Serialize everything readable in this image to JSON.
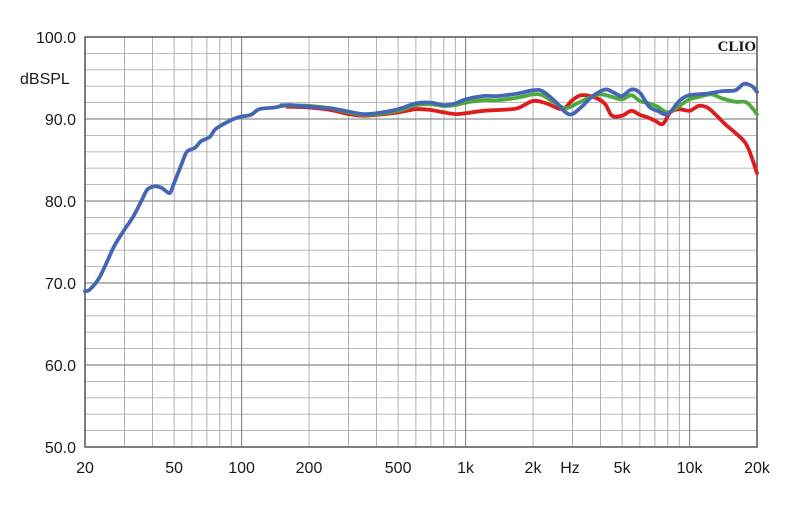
{
  "chart_data": {
    "type": "line",
    "title": "",
    "xlabel": "Hz",
    "ylabel": "dBSPL",
    "brand": "CLIO",
    "x_scale": "log",
    "xlim": [
      20,
      20000
    ],
    "ylim": [
      50,
      100
    ],
    "grid": true,
    "x_tick_labels": [
      {
        "value": 20,
        "label": "20"
      },
      {
        "value": 50,
        "label": "50"
      },
      {
        "value": 100,
        "label": "100"
      },
      {
        "value": 200,
        "label": "200"
      },
      {
        "value": 500,
        "label": "500"
      },
      {
        "value": 1000,
        "label": "1k"
      },
      {
        "value": 2000,
        "label": "2k"
      },
      {
        "value": 5000,
        "label": "5k"
      },
      {
        "value": 10000,
        "label": "10k"
      },
      {
        "value": 20000,
        "label": "20k"
      }
    ],
    "y_tick_labels": [
      {
        "value": 100,
        "label": "100.0"
      },
      {
        "value": 90,
        "label": "90.0"
      },
      {
        "value": 80,
        "label": "80.0"
      },
      {
        "value": 70,
        "label": "70.0"
      },
      {
        "value": 60,
        "label": "60.0"
      },
      {
        "value": 50,
        "label": "50.0"
      }
    ],
    "series": [
      {
        "color": "#dd1d1d",
        "points": [
          [
            160,
            91.5
          ],
          [
            200,
            91.4
          ],
          [
            250,
            91.1
          ],
          [
            300,
            90.6
          ],
          [
            350,
            90.4
          ],
          [
            400,
            90.5
          ],
          [
            500,
            90.8
          ],
          [
            600,
            91.2
          ],
          [
            700,
            91.1
          ],
          [
            800,
            90.8
          ],
          [
            900,
            90.6
          ],
          [
            1000,
            90.7
          ],
          [
            1200,
            91.0
          ],
          [
            1400,
            91.1
          ],
          [
            1700,
            91.3
          ],
          [
            2000,
            92.2
          ],
          [
            2300,
            91.9
          ],
          [
            2700,
            91.2
          ],
          [
            3000,
            92.3
          ],
          [
            3300,
            92.9
          ],
          [
            3800,
            92.6
          ],
          [
            4200,
            91.8
          ],
          [
            4500,
            90.4
          ],
          [
            5000,
            90.4
          ],
          [
            5500,
            91.0
          ],
          [
            6000,
            90.5
          ],
          [
            6500,
            90.2
          ],
          [
            7000,
            89.8
          ],
          [
            7600,
            89.4
          ],
          [
            8200,
            90.8
          ],
          [
            9000,
            91.2
          ],
          [
            10000,
            91.0
          ],
          [
            11000,
            91.6
          ],
          [
            12000,
            91.4
          ],
          [
            13000,
            90.6
          ],
          [
            14500,
            89.3
          ],
          [
            16000,
            88.3
          ],
          [
            18000,
            86.8
          ],
          [
            20000,
            83.4
          ]
        ]
      },
      {
        "color": "#4ca93a",
        "points": [
          [
            150,
            91.7
          ],
          [
            200,
            91.6
          ],
          [
            250,
            91.3
          ],
          [
            300,
            90.8
          ],
          [
            350,
            90.5
          ],
          [
            400,
            90.6
          ],
          [
            500,
            91.0
          ],
          [
            600,
            91.7
          ],
          [
            700,
            91.8
          ],
          [
            800,
            91.6
          ],
          [
            900,
            91.7
          ],
          [
            1000,
            92.0
          ],
          [
            1200,
            92.3
          ],
          [
            1400,
            92.3
          ],
          [
            1700,
            92.6
          ],
          [
            2000,
            93.0
          ],
          [
            2200,
            92.9
          ],
          [
            2500,
            92.0
          ],
          [
            2800,
            91.3
          ],
          [
            3200,
            92.0
          ],
          [
            3500,
            92.5
          ],
          [
            4000,
            93.0
          ],
          [
            4500,
            92.7
          ],
          [
            5000,
            92.4
          ],
          [
            5500,
            92.9
          ],
          [
            6000,
            92.2
          ],
          [
            6600,
            91.9
          ],
          [
            7200,
            91.5
          ],
          [
            8000,
            90.8
          ],
          [
            9000,
            91.6
          ],
          [
            10000,
            92.4
          ],
          [
            11000,
            92.7
          ],
          [
            12500,
            93.0
          ],
          [
            14000,
            92.5
          ],
          [
            16000,
            92.1
          ],
          [
            18000,
            92.0
          ],
          [
            20000,
            90.6
          ]
        ]
      },
      {
        "color": "#4566b5",
        "points": [
          [
            20,
            69.0
          ],
          [
            21,
            69.2
          ],
          [
            23,
            70.5
          ],
          [
            25,
            72.5
          ],
          [
            27,
            74.5
          ],
          [
            30,
            76.5
          ],
          [
            33,
            78.2
          ],
          [
            36,
            80.2
          ],
          [
            38,
            81.4
          ],
          [
            41,
            81.8
          ],
          [
            44,
            81.6
          ],
          [
            46,
            81.2
          ],
          [
            48,
            81.0
          ],
          [
            50,
            82.2
          ],
          [
            54,
            84.5
          ],
          [
            57,
            86.0
          ],
          [
            62,
            86.5
          ],
          [
            66,
            87.3
          ],
          [
            72,
            87.8
          ],
          [
            76,
            88.7
          ],
          [
            82,
            89.3
          ],
          [
            92,
            90.0
          ],
          [
            100,
            90.3
          ],
          [
            110,
            90.5
          ],
          [
            120,
            91.2
          ],
          [
            140,
            91.4
          ],
          [
            160,
            91.7
          ],
          [
            180,
            91.6
          ],
          [
            200,
            91.5
          ],
          [
            250,
            91.3
          ],
          [
            300,
            90.9
          ],
          [
            350,
            90.6
          ],
          [
            400,
            90.7
          ],
          [
            500,
            91.2
          ],
          [
            600,
            91.9
          ],
          [
            700,
            92.0
          ],
          [
            800,
            91.7
          ],
          [
            900,
            91.9
          ],
          [
            1000,
            92.4
          ],
          [
            1200,
            92.8
          ],
          [
            1400,
            92.8
          ],
          [
            1700,
            93.1
          ],
          [
            2000,
            93.5
          ],
          [
            2200,
            93.4
          ],
          [
            2500,
            92.2
          ],
          [
            2800,
            90.8
          ],
          [
            3000,
            90.6
          ],
          [
            3300,
            91.5
          ],
          [
            3700,
            92.8
          ],
          [
            4200,
            93.6
          ],
          [
            4600,
            93.2
          ],
          [
            5000,
            92.8
          ],
          [
            5500,
            93.6
          ],
          [
            6000,
            93.2
          ],
          [
            6600,
            91.5
          ],
          [
            7200,
            91.0
          ],
          [
            8000,
            90.6
          ],
          [
            9000,
            92.2
          ],
          [
            10000,
            92.9
          ],
          [
            12000,
            93.1
          ],
          [
            14000,
            93.4
          ],
          [
            16000,
            93.5
          ],
          [
            17500,
            94.3
          ],
          [
            19000,
            94.0
          ],
          [
            20000,
            93.3
          ]
        ]
      }
    ]
  }
}
